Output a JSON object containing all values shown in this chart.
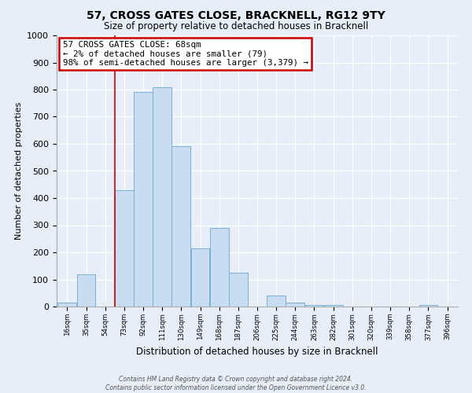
{
  "title": "57, CROSS GATES CLOSE, BRACKNELL, RG12 9TY",
  "subtitle": "Size of property relative to detached houses in Bracknell",
  "xlabel": "Distribution of detached houses by size in Bracknell",
  "ylabel": "Number of detached properties",
  "bar_color": "#c9ddf2",
  "bar_edge_color": "#7aafd4",
  "bin_labels": [
    "16sqm",
    "35sqm",
    "54sqm",
    "73sqm",
    "92sqm",
    "111sqm",
    "130sqm",
    "149sqm",
    "168sqm",
    "187sqm",
    "206sqm",
    "225sqm",
    "244sqm",
    "263sqm",
    "282sqm",
    "301sqm",
    "320sqm",
    "339sqm",
    "358sqm",
    "377sqm",
    "396sqm"
  ],
  "bin_edges": [
    16,
    35,
    54,
    73,
    92,
    111,
    130,
    149,
    168,
    187,
    206,
    225,
    244,
    263,
    282,
    301,
    320,
    339,
    358,
    377,
    396
  ],
  "bar_heights": [
    15,
    120,
    0,
    430,
    790,
    810,
    590,
    215,
    290,
    125,
    0,
    40,
    15,
    5,
    5,
    0,
    0,
    0,
    0,
    5
  ],
  "ylim": [
    0,
    1000
  ],
  "yticks": [
    0,
    100,
    200,
    300,
    400,
    500,
    600,
    700,
    800,
    900,
    1000
  ],
  "vline_x": 73,
  "vline_color": "#cc0000",
  "annotation_text": "57 CROSS GATES CLOSE: 68sqm\n← 2% of detached houses are smaller (79)\n98% of semi-detached houses are larger (3,379) →",
  "annotation_box_color": "#ffffff",
  "annotation_box_edge": "#cc0000",
  "footer_line1": "Contains HM Land Registry data © Crown copyright and database right 2024.",
  "footer_line2": "Contains public sector information licensed under the Open Government Licence v3.0.",
  "background_color": "#e8eef7",
  "grid_color": "#ffffff",
  "spine_color": "#aaaaaa"
}
